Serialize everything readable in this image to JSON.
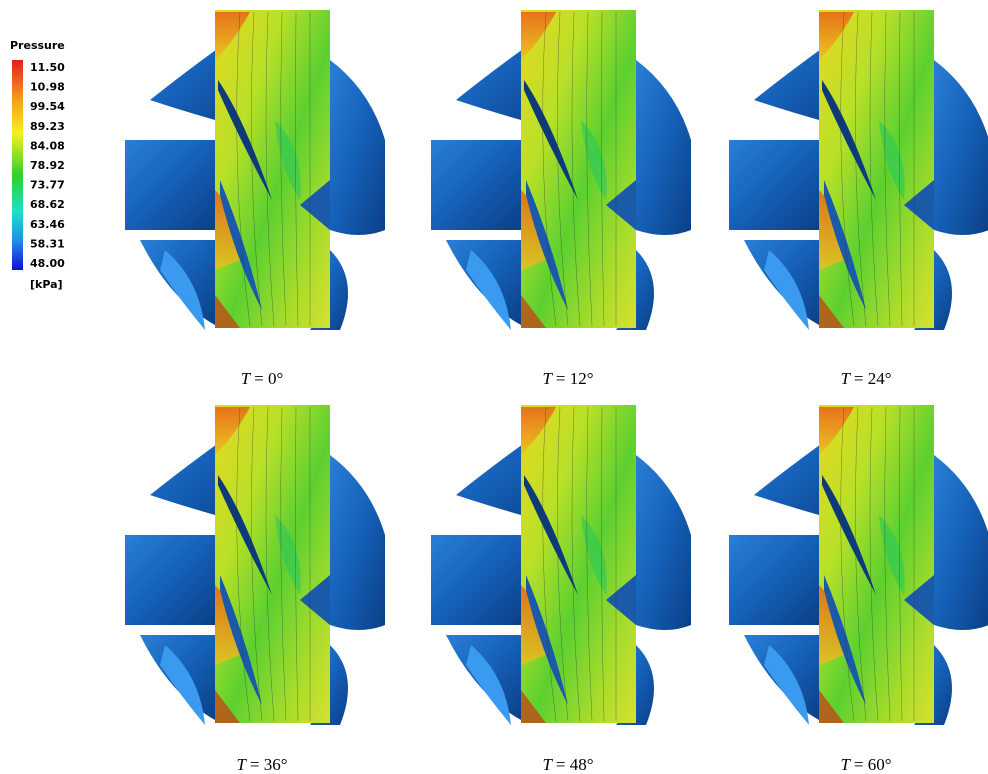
{
  "legend": {
    "title": "Pressure",
    "labels": [
      "11.50",
      "10.98",
      "99.54",
      "89.23",
      "84.08",
      "78.92",
      "73.77",
      "68.62",
      "63.46",
      "58.31",
      "48.00"
    ],
    "unit": "[kPa]"
  },
  "panels": [
    {
      "variable": "T",
      "value": "= 0°"
    },
    {
      "variable": "T",
      "value": "= 12°"
    },
    {
      "variable": "T",
      "value": "= 24°"
    },
    {
      "variable": "T",
      "value": "= 36°"
    },
    {
      "variable": "T",
      "value": "= 48°"
    },
    {
      "variable": "T",
      "value": "= 60°"
    }
  ]
}
